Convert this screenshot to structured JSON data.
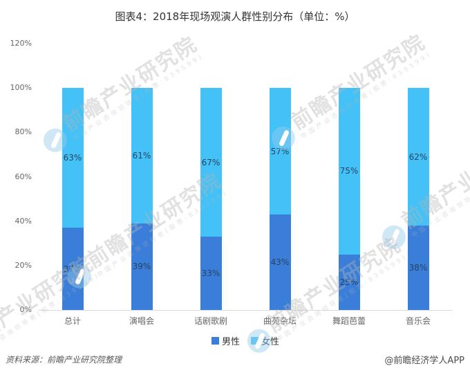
{
  "title": "图表4：2018年现场观演人群性别分布（单位：%）",
  "chart_data": {
    "type": "bar",
    "stacked": true,
    "title": "图表4：2018年现场观演人群性别分布（单位：%）",
    "categories": [
      "总计",
      "演唱会",
      "话剧歌剧",
      "曲苑杂坛",
      "舞蹈芭蕾",
      "音乐会"
    ],
    "series": [
      {
        "name": "男性",
        "color": "#3A7ED9",
        "values": [
          37,
          39,
          33,
          43,
          25,
          38
        ]
      },
      {
        "name": "女性",
        "color": "#44C2F7",
        "values": [
          63,
          61,
          67,
          57,
          75,
          62
        ]
      }
    ],
    "value_suffix": "%",
    "ylim": [
      0,
      120
    ],
    "yticks": [
      0,
      20,
      40,
      60,
      80,
      100,
      120
    ],
    "ytick_suffix": "%",
    "grid": false,
    "legend_position": "bottom",
    "axis_line_color": "#d9d9d9",
    "label_color": "#274360"
  },
  "legend": {
    "items": [
      {
        "label": "男性",
        "color": "#3A7ED9"
      },
      {
        "label": "女性",
        "color": "#44C2F7"
      }
    ]
  },
  "watermark": {
    "text": "前瞻产业研究院",
    "subtext": "中国产业咨询领导者(股票:839599)",
    "logo": "qianzhan-logo"
  },
  "footer": {
    "source": "资料来源：前瞻产业研究院整理",
    "brand": "@前瞻经济学人APP"
  }
}
